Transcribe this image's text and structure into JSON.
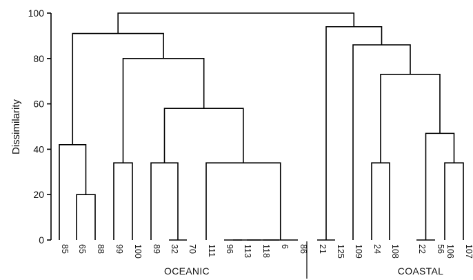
{
  "chart_data": {
    "type": "dendrogram",
    "ylabel": "Dissimilarity",
    "ylim": [
      0,
      100
    ],
    "yticks": [
      0,
      20,
      40,
      60,
      80,
      100
    ],
    "leaves": [
      "85",
      "65",
      "88",
      "99",
      "100",
      "89",
      "32",
      "70",
      "111",
      "96",
      "113",
      "118",
      "6",
      "86",
      "21",
      "125",
      "109",
      "24",
      "108",
      "22",
      "56",
      "106",
      "107"
    ],
    "groups": [
      {
        "label": "OCEANIC"
      },
      {
        "label": "COASTAL"
      }
    ],
    "merges": [
      {
        "left": "L:65",
        "right": "L:88",
        "height": 20
      },
      {
        "left": "L:85",
        "right": "N:0",
        "height": 42
      },
      {
        "left": "L:99",
        "right": "L:100",
        "height": 34
      },
      {
        "left": "L:32",
        "right": "L:70",
        "height": 0
      },
      {
        "left": "L:89",
        "right": "N:3",
        "height": 34
      },
      {
        "left": "L:96",
        "right": "L:113",
        "height": 0
      },
      {
        "left": "N:5",
        "right": "L:118",
        "height": 0
      },
      {
        "left": "N:6",
        "right": "L:6",
        "height": 0
      },
      {
        "left": "N:7",
        "right": "L:86",
        "height": 0
      },
      {
        "left": "L:111",
        "right": "N:8",
        "height": 34
      },
      {
        "left": "N:4",
        "right": "N:9",
        "height": 58
      },
      {
        "left": "N:2",
        "right": "N:10",
        "height": 80
      },
      {
        "left": "N:1",
        "right": "N:11",
        "height": 91
      },
      {
        "left": "L:21",
        "right": "L:125",
        "height": 0
      },
      {
        "left": "L:24",
        "right": "L:108",
        "height": 34
      },
      {
        "left": "L:22",
        "right": "L:56",
        "height": 0
      },
      {
        "left": "L:106",
        "right": "L:107",
        "height": 34
      },
      {
        "left": "N:15",
        "right": "N:16",
        "height": 47
      },
      {
        "left": "N:14",
        "right": "N:17",
        "height": 73
      },
      {
        "left": "L:109",
        "right": "N:18",
        "height": 86
      },
      {
        "left": "N:13",
        "right": "N:19",
        "height": 94
      },
      {
        "left": "N:12",
        "right": "N:20",
        "height": 100
      }
    ]
  }
}
